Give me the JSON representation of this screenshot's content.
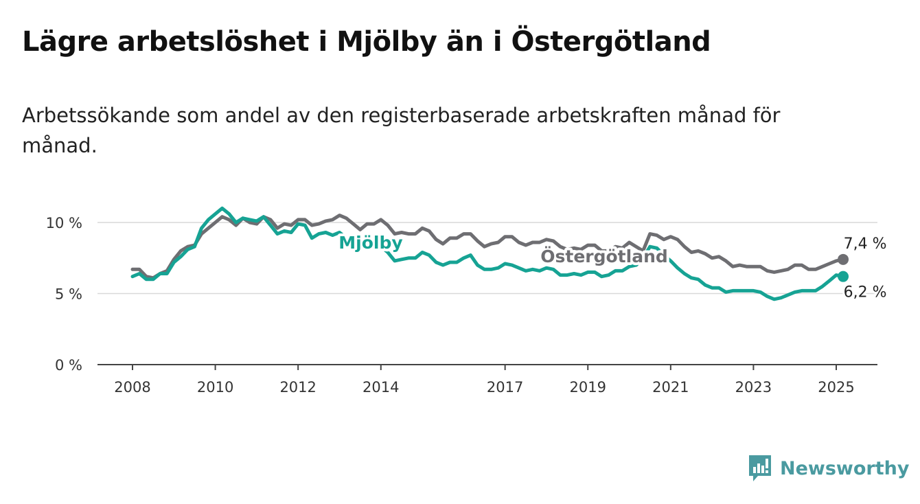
{
  "header": {
    "title": "Lägre arbetslöshet i Mjölby än i Östergötland",
    "subtitle": "Arbetssökande som andel av den registerbaserade arbetskraften månad för månad."
  },
  "brand": {
    "name": "Newsworthy",
    "icon": "newsworthy-logo-icon",
    "color": "#4a9aa0"
  },
  "chart_data": {
    "type": "line",
    "title": "Lägre arbetslöshet i Mjölby än i Östergötland",
    "subtitle": "Arbetssökande som andel av den registerbaserade arbetskraften månad för månad.",
    "xlabel": "",
    "ylabel": "",
    "x_ticks": [
      "2008",
      "2010",
      "2012",
      "2014",
      "2017",
      "2019",
      "2021",
      "2023",
      "2025"
    ],
    "y_ticks": [
      "0 %",
      "5 %",
      "10 %"
    ],
    "ylim": [
      0,
      11
    ],
    "xlim": [
      "2008-01",
      "2025-03"
    ],
    "grid": true,
    "legend": "inline labels",
    "series": [
      {
        "name": "Östergötland",
        "color": "#6e6e72",
        "end_label": "7,4 %",
        "points": [
          [
            "2008-01",
            6.7
          ],
          [
            "2008-03",
            6.7
          ],
          [
            "2008-05",
            6.2
          ],
          [
            "2008-07",
            6.1
          ],
          [
            "2008-09",
            6.4
          ],
          [
            "2008-11",
            6.6
          ],
          [
            "2009-01",
            7.4
          ],
          [
            "2009-03",
            8.0
          ],
          [
            "2009-05",
            8.3
          ],
          [
            "2009-07",
            8.4
          ],
          [
            "2009-09",
            9.2
          ],
          [
            "2009-11",
            9.6
          ],
          [
            "2010-01",
            10.0
          ],
          [
            "2010-03",
            10.4
          ],
          [
            "2010-05",
            10.2
          ],
          [
            "2010-07",
            9.8
          ],
          [
            "2010-09",
            10.3
          ],
          [
            "2010-11",
            10.0
          ],
          [
            "2011-01",
            9.9
          ],
          [
            "2011-03",
            10.4
          ],
          [
            "2011-05",
            10.2
          ],
          [
            "2011-07",
            9.6
          ],
          [
            "2011-09",
            9.9
          ],
          [
            "2011-11",
            9.8
          ],
          [
            "2012-01",
            10.2
          ],
          [
            "2012-03",
            10.2
          ],
          [
            "2012-05",
            9.8
          ],
          [
            "2012-07",
            9.9
          ],
          [
            "2012-09",
            10.1
          ],
          [
            "2012-11",
            10.2
          ],
          [
            "2013-01",
            10.5
          ],
          [
            "2013-03",
            10.3
          ],
          [
            "2013-05",
            9.9
          ],
          [
            "2013-07",
            9.5
          ],
          [
            "2013-09",
            9.9
          ],
          [
            "2013-11",
            9.9
          ],
          [
            "2014-01",
            10.2
          ],
          [
            "2014-03",
            9.8
          ],
          [
            "2014-05",
            9.2
          ],
          [
            "2014-07",
            9.3
          ],
          [
            "2014-09",
            9.2
          ],
          [
            "2014-11",
            9.2
          ],
          [
            "2015-01",
            9.6
          ],
          [
            "2015-03",
            9.4
          ],
          [
            "2015-05",
            8.8
          ],
          [
            "2015-07",
            8.5
          ],
          [
            "2015-09",
            8.9
          ],
          [
            "2015-11",
            8.9
          ],
          [
            "2016-01",
            9.2
          ],
          [
            "2016-03",
            9.2
          ],
          [
            "2016-05",
            8.7
          ],
          [
            "2016-07",
            8.3
          ],
          [
            "2016-09",
            8.5
          ],
          [
            "2016-11",
            8.6
          ],
          [
            "2017-01",
            9.0
          ],
          [
            "2017-03",
            9.0
          ],
          [
            "2017-05",
            8.6
          ],
          [
            "2017-07",
            8.4
          ],
          [
            "2017-09",
            8.6
          ],
          [
            "2017-11",
            8.6
          ],
          [
            "2018-01",
            8.8
          ],
          [
            "2018-03",
            8.7
          ],
          [
            "2018-05",
            8.3
          ],
          [
            "2018-07",
            8.1
          ],
          [
            "2018-09",
            8.2
          ],
          [
            "2018-11",
            8.1
          ],
          [
            "2019-01",
            8.4
          ],
          [
            "2019-03",
            8.4
          ],
          [
            "2019-05",
            8.0
          ],
          [
            "2019-07",
            8.0
          ],
          [
            "2019-09",
            8.3
          ],
          [
            "2019-11",
            8.2
          ],
          [
            "2020-01",
            8.6
          ],
          [
            "2020-03",
            8.3
          ],
          [
            "2020-05",
            8.0
          ],
          [
            "2020-07",
            9.2
          ],
          [
            "2020-09",
            9.1
          ],
          [
            "2020-11",
            8.8
          ],
          [
            "2021-01",
            9.0
          ],
          [
            "2021-03",
            8.8
          ],
          [
            "2021-05",
            8.3
          ],
          [
            "2021-07",
            7.9
          ],
          [
            "2021-09",
            8.0
          ],
          [
            "2021-11",
            7.8
          ],
          [
            "2022-01",
            7.5
          ],
          [
            "2022-03",
            7.6
          ],
          [
            "2022-05",
            7.3
          ],
          [
            "2022-07",
            6.9
          ],
          [
            "2022-09",
            7.0
          ],
          [
            "2022-11",
            6.9
          ],
          [
            "2023-01",
            6.9
          ],
          [
            "2023-03",
            6.9
          ],
          [
            "2023-05",
            6.6
          ],
          [
            "2023-07",
            6.5
          ],
          [
            "2023-09",
            6.6
          ],
          [
            "2023-11",
            6.7
          ],
          [
            "2024-01",
            7.0
          ],
          [
            "2024-03",
            7.0
          ],
          [
            "2024-05",
            6.7
          ],
          [
            "2024-07",
            6.7
          ],
          [
            "2024-09",
            6.9
          ],
          [
            "2024-11",
            7.1
          ],
          [
            "2025-01",
            7.3
          ],
          [
            "2025-03",
            7.4
          ]
        ]
      },
      {
        "name": "Mjölby",
        "color": "#16a394",
        "end_label": "6,2 %",
        "points": [
          [
            "2008-01",
            6.2
          ],
          [
            "2008-03",
            6.4
          ],
          [
            "2008-05",
            6.0
          ],
          [
            "2008-07",
            6.0
          ],
          [
            "2008-09",
            6.4
          ],
          [
            "2008-11",
            6.4
          ],
          [
            "2009-01",
            7.2
          ],
          [
            "2009-03",
            7.6
          ],
          [
            "2009-05",
            8.1
          ],
          [
            "2009-07",
            8.3
          ],
          [
            "2009-09",
            9.6
          ],
          [
            "2009-11",
            10.2
          ],
          [
            "2010-01",
            10.6
          ],
          [
            "2010-03",
            11.0
          ],
          [
            "2010-05",
            10.6
          ],
          [
            "2010-07",
            10.0
          ],
          [
            "2010-09",
            10.3
          ],
          [
            "2010-11",
            10.2
          ],
          [
            "2011-01",
            10.1
          ],
          [
            "2011-03",
            10.4
          ],
          [
            "2011-05",
            9.8
          ],
          [
            "2011-07",
            9.2
          ],
          [
            "2011-09",
            9.4
          ],
          [
            "2011-11",
            9.3
          ],
          [
            "2012-01",
            9.9
          ],
          [
            "2012-03",
            9.8
          ],
          [
            "2012-05",
            8.9
          ],
          [
            "2012-07",
            9.2
          ],
          [
            "2012-09",
            9.3
          ],
          [
            "2012-11",
            9.1
          ],
          [
            "2013-01",
            9.3
          ],
          [
            "2013-03",
            8.9
          ],
          [
            "2013-05",
            8.5
          ],
          [
            "2013-07",
            8.4
          ],
          [
            "2013-09",
            8.6
          ],
          [
            "2013-11",
            8.5
          ],
          [
            "2014-01",
            8.3
          ],
          [
            "2014-03",
            7.9
          ],
          [
            "2014-05",
            7.3
          ],
          [
            "2014-07",
            7.4
          ],
          [
            "2014-09",
            7.5
          ],
          [
            "2014-11",
            7.5
          ],
          [
            "2015-01",
            7.9
          ],
          [
            "2015-03",
            7.7
          ],
          [
            "2015-05",
            7.2
          ],
          [
            "2015-07",
            7.0
          ],
          [
            "2015-09",
            7.2
          ],
          [
            "2015-11",
            7.2
          ],
          [
            "2016-01",
            7.5
          ],
          [
            "2016-03",
            7.7
          ],
          [
            "2016-05",
            7.0
          ],
          [
            "2016-07",
            6.7
          ],
          [
            "2016-09",
            6.7
          ],
          [
            "2016-11",
            6.8
          ],
          [
            "2017-01",
            7.1
          ],
          [
            "2017-03",
            7.0
          ],
          [
            "2017-05",
            6.8
          ],
          [
            "2017-07",
            6.6
          ],
          [
            "2017-09",
            6.7
          ],
          [
            "2017-11",
            6.6
          ],
          [
            "2018-01",
            6.8
          ],
          [
            "2018-03",
            6.7
          ],
          [
            "2018-05",
            6.3
          ],
          [
            "2018-07",
            6.3
          ],
          [
            "2018-09",
            6.4
          ],
          [
            "2018-11",
            6.3
          ],
          [
            "2019-01",
            6.5
          ],
          [
            "2019-03",
            6.5
          ],
          [
            "2019-05",
            6.2
          ],
          [
            "2019-07",
            6.3
          ],
          [
            "2019-09",
            6.6
          ],
          [
            "2019-11",
            6.6
          ],
          [
            "2020-01",
            6.9
          ],
          [
            "2020-03",
            7.0
          ],
          [
            "2020-05",
            7.5
          ],
          [
            "2020-07",
            8.3
          ],
          [
            "2020-09",
            8.2
          ],
          [
            "2020-11",
            7.7
          ],
          [
            "2021-01",
            7.3
          ],
          [
            "2021-03",
            6.8
          ],
          [
            "2021-05",
            6.4
          ],
          [
            "2021-07",
            6.1
          ],
          [
            "2021-09",
            6.0
          ],
          [
            "2021-11",
            5.6
          ],
          [
            "2022-01",
            5.4
          ],
          [
            "2022-03",
            5.4
          ],
          [
            "2022-05",
            5.1
          ],
          [
            "2022-07",
            5.2
          ],
          [
            "2022-09",
            5.2
          ],
          [
            "2022-11",
            5.2
          ],
          [
            "2023-01",
            5.2
          ],
          [
            "2023-03",
            5.1
          ],
          [
            "2023-05",
            4.8
          ],
          [
            "2023-07",
            4.6
          ],
          [
            "2023-09",
            4.7
          ],
          [
            "2023-11",
            4.9
          ],
          [
            "2024-01",
            5.1
          ],
          [
            "2024-03",
            5.2
          ],
          [
            "2024-05",
            5.2
          ],
          [
            "2024-07",
            5.2
          ],
          [
            "2024-09",
            5.5
          ],
          [
            "2024-11",
            5.9
          ],
          [
            "2025-01",
            6.3
          ],
          [
            "2025-03",
            6.2
          ]
        ]
      }
    ]
  }
}
